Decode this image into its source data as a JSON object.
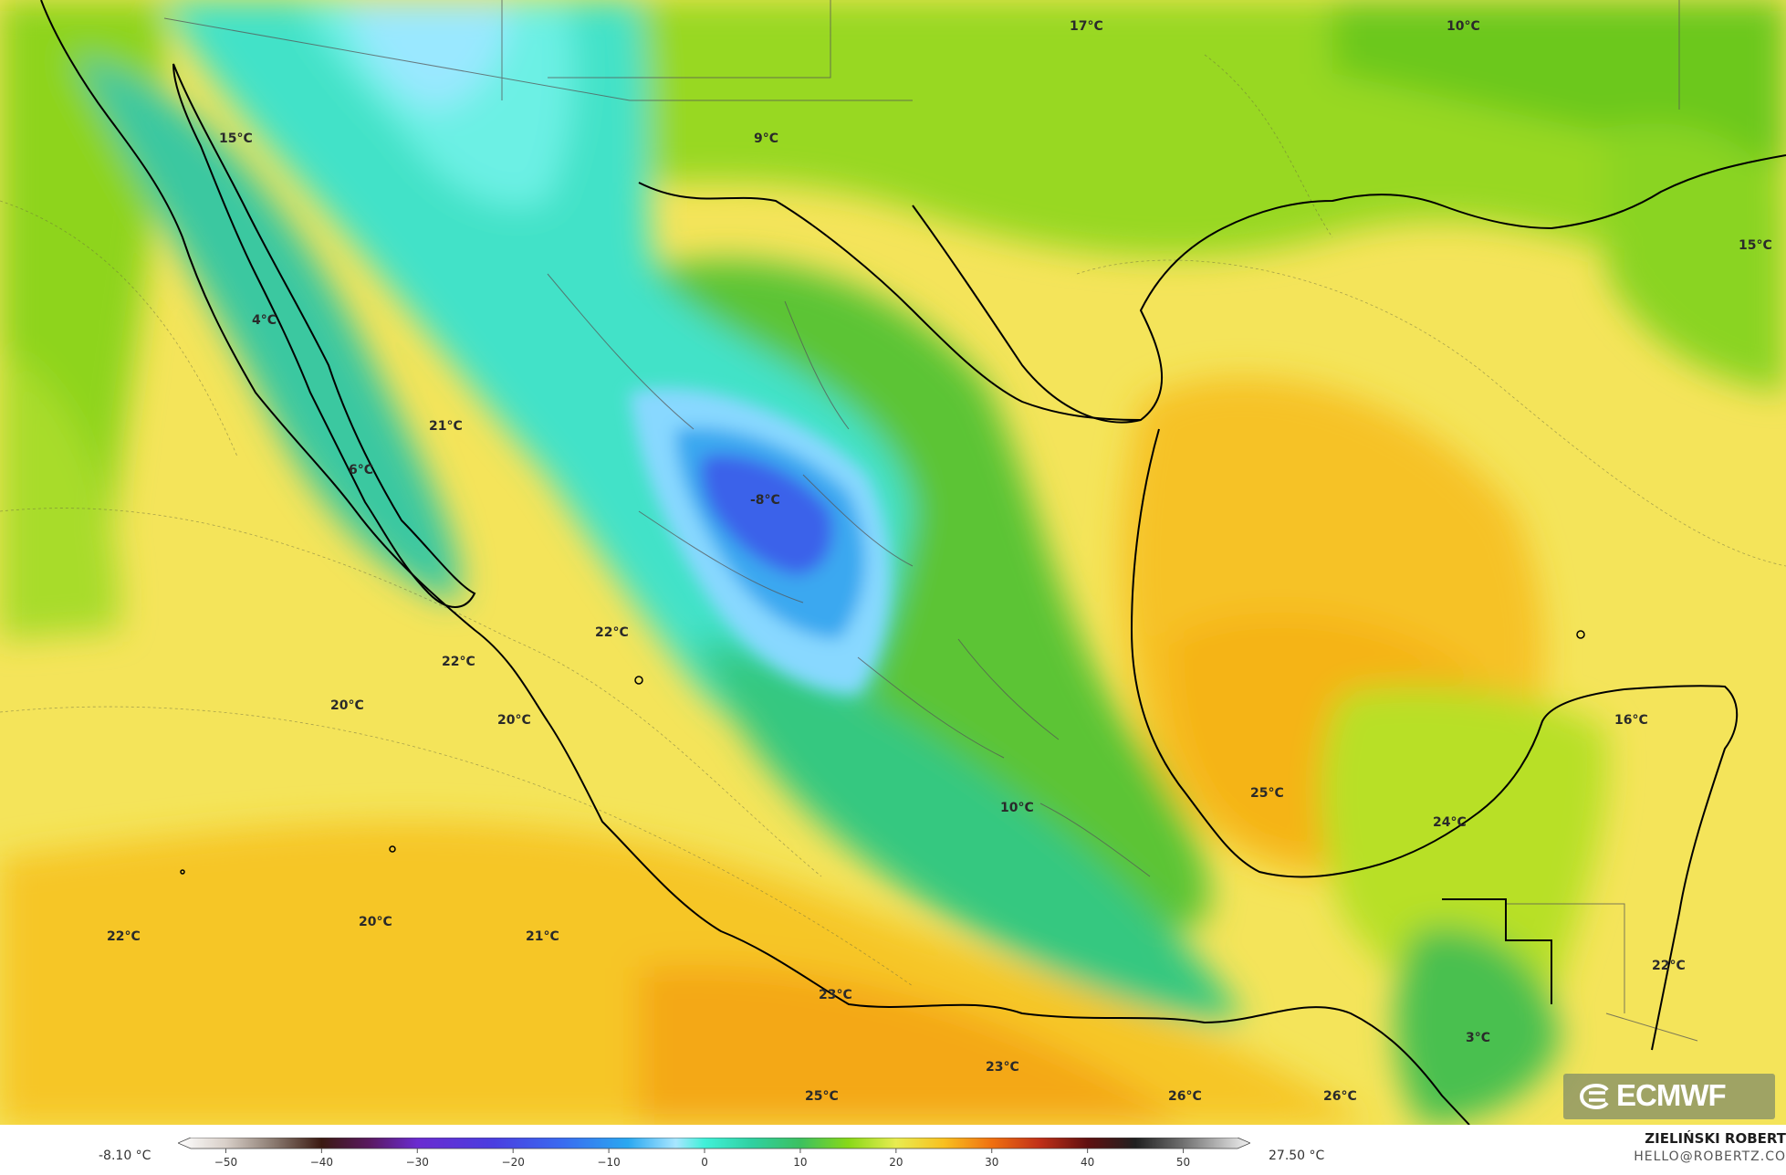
{
  "map": {
    "unit": "°C",
    "temperature_labels": [
      {
        "id": "t1",
        "text": "17°C"
      },
      {
        "id": "t2",
        "text": "10°C"
      },
      {
        "id": "t3",
        "text": "15°C"
      },
      {
        "id": "t4",
        "text": "9°C"
      },
      {
        "id": "t5",
        "text": "15°C"
      },
      {
        "id": "t6",
        "text": "4°C"
      },
      {
        "id": "t7",
        "text": "21°C"
      },
      {
        "id": "t8",
        "text": "6°C"
      },
      {
        "id": "t9",
        "text": "-8°C"
      },
      {
        "id": "t10",
        "text": "22°C"
      },
      {
        "id": "t11",
        "text": "22°C"
      },
      {
        "id": "t12",
        "text": "20°C"
      },
      {
        "id": "t13",
        "text": "20°C"
      },
      {
        "id": "t14",
        "text": "16°C"
      },
      {
        "id": "t15",
        "text": "25°C"
      },
      {
        "id": "t16",
        "text": "10°C"
      },
      {
        "id": "t17",
        "text": "24°C"
      },
      {
        "id": "t18",
        "text": "22°C"
      },
      {
        "id": "t19",
        "text": "20°C"
      },
      {
        "id": "t20",
        "text": "21°C"
      },
      {
        "id": "t21",
        "text": "22°C"
      },
      {
        "id": "t22",
        "text": "23°C"
      },
      {
        "id": "t23",
        "text": "23°C"
      },
      {
        "id": "t24",
        "text": "25°C"
      },
      {
        "id": "t25",
        "text": "26°C"
      },
      {
        "id": "t26",
        "text": "26°C"
      },
      {
        "id": "t27",
        "text": "3°C"
      }
    ]
  },
  "colorbar": {
    "min_label": "-8.10 °C",
    "max_label": "27.50 °C",
    "ticks": [
      "−50",
      "−40",
      "−30",
      "−20",
      "−10",
      "0",
      "10",
      "20",
      "30",
      "40",
      "50"
    ],
    "range": [
      -55,
      57
    ],
    "stops": [
      {
        "v": -55,
        "c": "#ffffff"
      },
      {
        "v": -50,
        "c": "#d8cfc8"
      },
      {
        "v": -45,
        "c": "#8a7a70"
      },
      {
        "v": -40,
        "c": "#3b1a12"
      },
      {
        "v": -35,
        "c": "#5a1a60"
      },
      {
        "v": -30,
        "c": "#6a2bd0"
      },
      {
        "v": -22,
        "c": "#4a3ee0"
      },
      {
        "v": -15,
        "c": "#3a6af0"
      },
      {
        "v": -8,
        "c": "#2aa8f0"
      },
      {
        "v": -3,
        "c": "#a8e6ff"
      },
      {
        "v": 0,
        "c": "#40f0d8"
      },
      {
        "v": 5,
        "c": "#30d0a0"
      },
      {
        "v": 10,
        "c": "#3cc060"
      },
      {
        "v": 15,
        "c": "#88d818"
      },
      {
        "v": 20,
        "c": "#e8ec50"
      },
      {
        "v": 25,
        "c": "#f8c020"
      },
      {
        "v": 30,
        "c": "#f07010"
      },
      {
        "v": 35,
        "c": "#c03018"
      },
      {
        "v": 40,
        "c": "#601010"
      },
      {
        "v": 45,
        "c": "#202020"
      },
      {
        "v": 50,
        "c": "#707070"
      },
      {
        "v": 57,
        "c": "#f2f2f2"
      }
    ]
  },
  "credit": {
    "name": "ZIELIŃSKI ROBERT",
    "email": "HELLO@ROBERTZ.CO"
  },
  "logo": {
    "text": "ECMWF",
    "icon": "ecmwf-logo-icon"
  },
  "colors": {
    "ocean_warm": "#f6c21c",
    "ocean_mild": "#f4e45a",
    "land_green": "#7fd21c",
    "cold_teal": "#3ee6c8",
    "cold_blue": "#3a6af0",
    "coast": "#000000",
    "borders": "#5a5a5a"
  }
}
